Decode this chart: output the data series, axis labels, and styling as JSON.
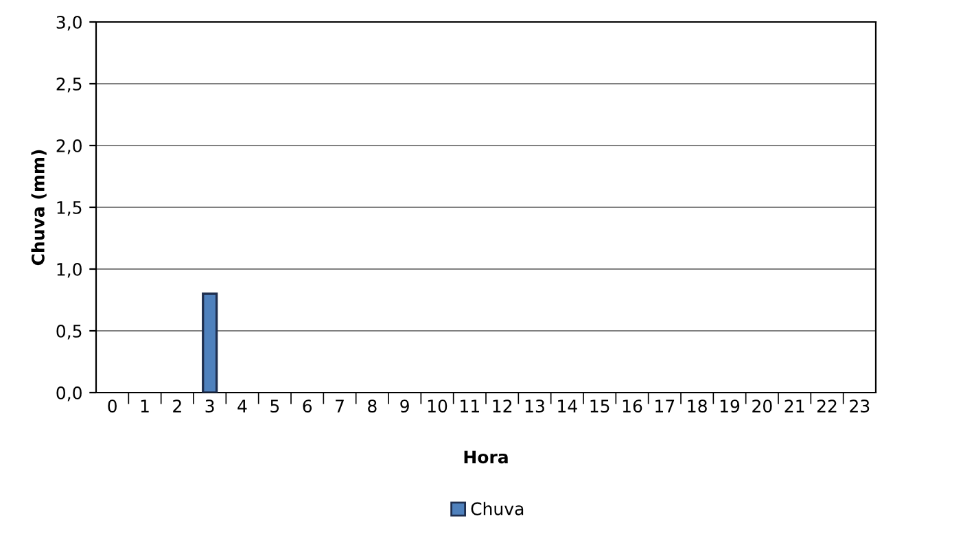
{
  "chart_data": {
    "type": "bar",
    "xlabel": "Hora",
    "ylabel": "Chuva (mm)",
    "categories": [
      "0",
      "1",
      "2",
      "3",
      "4",
      "5",
      "6",
      "7",
      "8",
      "9",
      "10",
      "11",
      "12",
      "13",
      "14",
      "15",
      "16",
      "17",
      "18",
      "19",
      "20",
      "21",
      "22",
      "23"
    ],
    "series": [
      {
        "name": "Chuva",
        "color": "#4f81bd",
        "values": [
          0,
          0,
          0,
          0.8,
          0,
          0,
          0,
          0,
          0,
          0,
          0,
          0,
          0,
          0,
          0,
          0,
          0,
          0,
          0,
          0,
          0,
          0,
          0,
          0
        ]
      }
    ],
    "ylim": [
      0,
      3
    ],
    "yticks": [
      {
        "value": 0,
        "label": "0,0"
      },
      {
        "value": 0.5,
        "label": "0,5"
      },
      {
        "value": 1,
        "label": "1,0"
      },
      {
        "value": 1.5,
        "label": "1,5"
      },
      {
        "value": 2,
        "label": "2,0"
      },
      {
        "value": 2.5,
        "label": "2,5"
      },
      {
        "value": 3,
        "label": "3,0"
      }
    ],
    "grid": "y",
    "legend": "bottom"
  }
}
